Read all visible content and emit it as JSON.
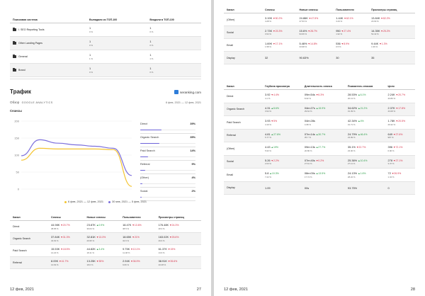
{
  "page27": {
    "top_table": {
      "headers": [
        "Поисковая система",
        "Выпадали из ТОП-100",
        "Входили в ТОП-100"
      ],
      "rows": [
        {
          "name": "I. SEO Reporting Tools",
          "drop": "1",
          "drop_pct": "0 %",
          "enter": "1",
          "enter_pct": "0 %"
        },
        {
          "name": "Other Landing Pages",
          "drop": "1",
          "drop_pct": "0 %",
          "enter": "1",
          "enter_pct": "0 %"
        },
        {
          "name": "General",
          "drop": "1",
          "drop_pct": "1 %",
          "enter": "1",
          "enter_pct": "1 %"
        },
        {
          "name": "Brand",
          "drop": "1",
          "drop_pct": "0 %",
          "enter": "1",
          "enter_pct": "0 %"
        }
      ]
    },
    "traffic": {
      "title": "Трафик",
      "brand": "seranking.com",
      "subtitle_prefix": "Обзор",
      "subtitle_source": "GOOGLE ANALYTICS",
      "date_range": "6 фев, 2021 — 12 фев, 2021",
      "chart_label": "Сеансы",
      "legend_current": "6 фев, 2021 — 12 фев, 2021",
      "legend_previous": "30 янв, 2021 — 5 фев, 2021"
    },
    "chart_data": {
      "type": "line",
      "title": "",
      "xlabel": "",
      "ylabel": "",
      "ylim": [
        0,
        200
      ],
      "y_ticks": [
        "200",
        "150",
        "100",
        "50",
        "0"
      ],
      "series": [
        {
          "name": "6 фев, 2021 — 12 фев, 2021",
          "color": "#f4c430",
          "values": [
            85,
            120,
            118,
            118,
            118,
            116,
            8
          ]
        },
        {
          "name": "30 янв, 2021 — 5 фев, 2021",
          "color": "#7c6fdc",
          "values": [
            98,
            145,
            135,
            130,
            126,
            120,
            40
          ]
        }
      ]
    },
    "channels_breakdown": [
      {
        "name": "Direct",
        "pct": "39%",
        "value": 39
      },
      {
        "name": "Organic Search",
        "pct": "35%",
        "value": 35
      },
      {
        "name": "Paid Search",
        "pct": "14%",
        "value": 14
      },
      {
        "name": "Referral",
        "pct": "9%",
        "value": 9
      },
      {
        "name": "(Other)",
        "pct": "4%",
        "value": 4
      },
      {
        "name": "Social",
        "pct": "2%",
        "value": 2
      }
    ],
    "bottom_table": {
      "headers": [
        "Канал",
        "Сеансы",
        "Новые сеансы",
        "Пользователи",
        "Просмотры страниц"
      ],
      "rows": [
        {
          "name": "Direct",
          "cells": [
            {
              "v": "44.98K",
              "d": "20.7%",
              "dir": "dn",
              "s": "38.95 %"
            },
            {
              "v": "23.87K",
              "d": "0.9%",
              "dir": "up",
              "s": "39.64 %"
            },
            {
              "v": "18.47K",
              "d": "13.6%",
              "dir": "dn",
              "s": "38.5 %"
            },
            {
              "v": "176.48K",
              "d": "24.3%",
              "dir": "dn",
              "s": "48.3 %"
            }
          ]
        },
        {
          "name": "Organic Search",
          "cells": [
            {
              "v": "37.84K",
              "d": "31.3%",
              "dir": "dn",
              "s": "34.63 %"
            },
            {
              "v": "32.81K",
              "d": "13.3%",
              "dir": "dn",
              "s": "29.95 %"
            },
            {
              "v": "18.65K",
              "d": "21%",
              "dir": "dn",
              "s": "32.6 %"
            },
            {
              "v": "163.02K",
              "d": "25.6%",
              "dir": "dn",
              "s": "29.6 %"
            }
          ]
        },
        {
          "name": "Paid Search",
          "cells": [
            {
              "v": "15.53K",
              "d": "18.5%",
              "dir": "dn",
              "s": "14.22 %"
            },
            {
              "v": "44.82K",
              "d": "3.4%",
              "dir": "up",
              "s": "18.11 %"
            },
            {
              "v": "9.75K",
              "d": "10.1%",
              "dir": "dn",
              "s": "11.48 %"
            },
            {
              "v": "61.37K",
              "d": "15%",
              "dir": "dn",
              "s": "13.6 %"
            }
          ]
        },
        {
          "name": "Referral",
          "cells": [
            {
              "v": "8.09K",
              "d": "41.7%",
              "dir": "dn",
              "s": "13.63 %"
            },
            {
              "v": "13.25K",
              "d": "35%",
              "dir": "dn",
              "s": "18.6 %"
            },
            {
              "v": "2.94K",
              "d": "36.9%",
              "dir": "dn",
              "s": "9.66 %"
            },
            {
              "v": "38.91K",
              "d": "35.6%",
              "dir": "dn",
              "s": "20.08 %"
            }
          ]
        }
      ]
    },
    "footer": {
      "date": "12 фев, 2021",
      "page": "27"
    }
  },
  "page28": {
    "table1": {
      "headers": [
        "Канал",
        "Сеансы",
        "Новые сеансы",
        "Пользователи",
        "Просмотры страниц"
      ],
      "rows": [
        {
          "name": "(Other)",
          "cells": [
            {
              "v": "3.19K",
              "d": "50.2%",
              "dir": "dn",
              "s": "4.28 %"
            },
            {
              "v": "24.86K",
              "d": "47.5%",
              "dir": "dn",
              "s": "47.53 %"
            },
            {
              "v": "1.44K",
              "d": "62.1%",
              "dir": "dn",
              "s": "3.43 %"
            },
            {
              "v": "13.84K",
              "d": "82.2%",
              "dir": "dn",
              "s": "23.93 %"
            }
          ]
        },
        {
          "name": "Social",
          "cells": [
            {
              "v": "2.73K",
              "d": "23.3%",
              "dir": "dn",
              "s": "3.94 %"
            },
            {
              "v": "15.6%",
              "d": "28.7%",
              "dir": "dn",
              "s": "93.66 %"
            },
            {
              "v": "950",
              "d": "27.4%",
              "dir": "dn",
              "s": "1.92 %"
            },
            {
              "v": "14.35K",
              "d": "25.2%",
              "dir": "dn",
              "s": "52.42 %"
            }
          ]
        },
        {
          "name": "Email",
          "cells": [
            {
              "v": "1.69K",
              "d": "17.1%",
              "dir": "dn",
              "s": "1.58 %"
            },
            {
              "v": "5.46%",
              "d": "14.8%",
              "dir": "dn",
              "s": "33.98 %"
            },
            {
              "v": "536",
              "d": "8.9%",
              "dir": "dn",
              "s": "0.5 %"
            },
            {
              "v": "9.44K",
              "d": "1.3%",
              "dir": "dn",
              "s": "1.36 %"
            }
          ]
        },
        {
          "name": "Display",
          "cells": [
            {
              "v": "32",
              "d": "",
              "dir": "",
              "s": ""
            },
            {
              "v": "90.63%",
              "d": "",
              "dir": "",
              "s": ""
            },
            {
              "v": "30",
              "d": "",
              "dir": "",
              "s": ""
            },
            {
              "v": "35",
              "d": "",
              "dir": "",
              "s": ""
            }
          ]
        }
      ]
    },
    "table2": {
      "headers": [
        "Канал",
        "Глубина просмотра",
        "Длительность сеанса",
        "Показатель отказов",
        "Цели"
      ],
      "rows": [
        {
          "name": "Direct",
          "cells": [
            {
              "v": "3.92",
              "d": "4.4%",
              "dir": "dn",
              "s": "4.1 %"
            },
            {
              "v": "09m:54s",
              "d": "6.3%",
              "dir": "dn",
              "s": "8.93 %"
            },
            {
              "v": "28.53%",
              "d": "6.1%",
              "dir": "up",
              "s": "20.13 %"
            },
            {
              "v": "2.24K",
              "d": "20.7%",
              "dir": "dn",
              "s": "40.89 %"
            }
          ]
        },
        {
          "name": "Organic Search",
          "cells": [
            {
              "v": "4.31",
              "d": "8.6%",
              "dir": "up",
              "s": "3.94 %"
            },
            {
              "v": "04m:27s",
              "d": "15.9%",
              "dir": "up",
              "s": "29.64 %"
            },
            {
              "v": "34.62%",
              "d": "21.2%",
              "dir": "up",
              "s": "31.39 %"
            },
            {
              "v": "2.37K",
              "d": "17.8%",
              "dir": "dn",
              "s": "43.08 %"
            }
          ]
        },
        {
          "name": "Paid Search",
          "cells": [
            {
              "v": "3.93",
              "d": "5%",
              "dir": "dn",
              "s": "4.19 %"
            },
            {
              "v": "04m:28s",
              "d": "",
              "dir": "",
              "s": "4.68 %"
            },
            {
              "v": "42.34%",
              "d": "4%",
              "dir": "up",
              "s": "31.71 %"
            },
            {
              "v": "1.78K",
              "d": "20.5%",
              "dir": "dn",
              "s": "29.32 %"
            }
          ]
        },
        {
          "name": "Referral",
          "cells": [
            {
              "v": "4.81",
              "d": "27.6%",
              "dir": "up",
              "s": "5.77 %"
            },
            {
              "v": "07m:14s",
              "d": "30.7%",
              "dir": "up",
              "s": "35.7 %"
            },
            {
              "v": "24.79%",
              "d": "46.4%",
              "dir": "up",
              "s": "23.99 %"
            },
            {
              "v": "649",
              "d": "27.6%",
              "dir": "dn",
              "s": "987 %"
            }
          ]
        },
        {
          "name": "(Other)",
          "cells": [
            {
              "v": "4.43",
              "d": "19%",
              "dir": "up",
              "s": "5.93 %"
            },
            {
              "v": "09m:13s",
              "d": "27.7%",
              "dir": "up",
              "s": "20.86 %"
            },
            {
              "v": "35.1%",
              "d": "22.7%",
              "dir": "dn",
              "s": "23.06 %"
            },
            {
              "v": "396",
              "d": "72.1%",
              "dir": "dn",
              "s": "6.96 %"
            }
          ]
        },
        {
          "name": "Social",
          "cells": [
            {
              "v": "5.26",
              "d": "2.2%",
              "dir": "dn",
              "s": "2.03 %"
            },
            {
              "v": "07m:40s",
              "d": "0.2%",
              "dir": "dn",
              "s": "27.61 %"
            },
            {
              "v": "25.36%",
              "d": "10.4%",
              "dir": "up",
              "s": "27.11 %"
            },
            {
              "v": "278",
              "d": "27.1%",
              "dir": "dn",
              "s": "3.37 %"
            }
          ]
        },
        {
          "name": "Email",
          "cells": [
            {
              "v": "5.8",
              "d": "19.3%",
              "dir": "up",
              "s": "7.22 %"
            },
            {
              "v": "08m:00s",
              "d": "13.5%",
              "dir": "up",
              "s": "17.74 %"
            },
            {
              "v": "24.13%",
              "d": "1.6%",
              "dir": "up",
              "s": "28.22 %"
            },
            {
              "v": "72",
              "d": "26.9%",
              "dir": "dn",
              "s": "1.34 %"
            }
          ]
        },
        {
          "name": "Display",
          "cells": [
            {
              "v": "1.09",
              "d": "",
              "dir": "",
              "s": ""
            },
            {
              "v": "00s",
              "d": "",
              "dir": "",
              "s": ""
            },
            {
              "v": "93.75%",
              "d": "",
              "dir": "",
              "s": ""
            },
            {
              "v": "0",
              "d": "",
              "dir": "",
              "s": ""
            }
          ]
        }
      ]
    },
    "footer": {
      "date": "12 фев, 2021",
      "page": "28"
    }
  },
  "colors": {
    "accent": "#6c63d9",
    "series_current": "#f4c430",
    "series_previous": "#7c6fdc",
    "up": "#2e9e4a",
    "down": "#d6334a"
  }
}
